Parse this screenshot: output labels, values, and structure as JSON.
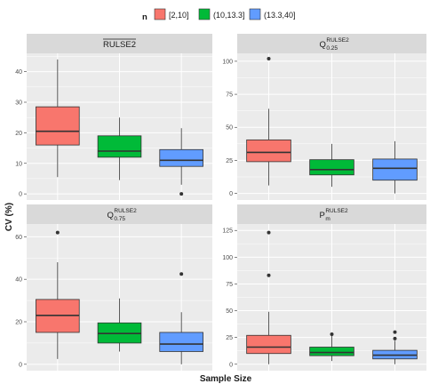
{
  "legend": {
    "title": "n",
    "items": [
      {
        "label": "[2,10]",
        "color": "#F8766D"
      },
      {
        "label": "(10,13.3]",
        "color": "#00BA38"
      },
      {
        "label": "(13.3,40]",
        "color": "#619CFF"
      }
    ]
  },
  "axes": {
    "xlabel": "Sample Size",
    "ylabel": "CV (%)"
  },
  "colors": {
    "panel_bg": "#EBEBEB",
    "strip_bg": "#D9D9D9",
    "grid": "#FFFFFF"
  },
  "chart_data": [
    {
      "type": "box",
      "strip": {
        "main": "RULSE2",
        "overline": true,
        "sub": "",
        "sup": ""
      },
      "ylim": [
        -2,
        46
      ],
      "yticks": [
        0,
        10,
        20,
        30,
        40
      ],
      "boxes": [
        {
          "group": "[2,10]",
          "whisker_low": 5.5,
          "q1": 16,
          "median": 20.5,
          "q3": 28.5,
          "whisker_high": 44,
          "outliers": []
        },
        {
          "group": "(10,13.3]",
          "whisker_low": 4.5,
          "q1": 12,
          "median": 14,
          "q3": 19,
          "whisker_high": 25,
          "outliers": []
        },
        {
          "group": "(13.3,40]",
          "whisker_low": 3,
          "q1": 9,
          "median": 11,
          "q3": 14.5,
          "whisker_high": 21.5,
          "outliers": [
            0
          ]
        }
      ]
    },
    {
      "type": "box",
      "strip": {
        "main": "Q",
        "overline": false,
        "sub": "0.25",
        "sup": "RULSE2"
      },
      "ylim": [
        -5,
        106
      ],
      "yticks": [
        0,
        25,
        50,
        75,
        100
      ],
      "boxes": [
        {
          "group": "[2,10]",
          "whisker_low": 6,
          "q1": 24,
          "median": 31,
          "q3": 40.5,
          "whisker_high": 64,
          "outliers": [
            102
          ]
        },
        {
          "group": "(10,13.3]",
          "whisker_low": 5,
          "q1": 14,
          "median": 18,
          "q3": 25.5,
          "whisker_high": 37.5,
          "outliers": []
        },
        {
          "group": "(13.3,40]",
          "whisker_low": 0,
          "q1": 10,
          "median": 19,
          "q3": 26,
          "whisker_high": 39.5,
          "outliers": []
        }
      ]
    },
    {
      "type": "box",
      "strip": {
        "main": "Q",
        "overline": false,
        "sub": "0.75",
        "sup": "RULSE2"
      },
      "ylim": [
        -3,
        66
      ],
      "yticks": [
        0,
        20,
        40,
        60
      ],
      "boxes": [
        {
          "group": "[2,10]",
          "whisker_low": 2.5,
          "q1": 15,
          "median": 23,
          "q3": 30.5,
          "whisker_high": 48,
          "outliers": [
            62
          ]
        },
        {
          "group": "(10,13.3]",
          "whisker_low": 6,
          "q1": 10,
          "median": 14.5,
          "q3": 19.5,
          "whisker_high": 31,
          "outliers": []
        },
        {
          "group": "(13.3,40]",
          "whisker_low": 0,
          "q1": 6,
          "median": 9.5,
          "q3": 15,
          "whisker_high": 24.5,
          "outliers": [
            42.5
          ]
        }
      ]
    },
    {
      "type": "box",
      "strip": {
        "main": "P",
        "overline": false,
        "sub": "m",
        "sup": "RULSE2"
      },
      "ylim": [
        -6,
        131
      ],
      "yticks": [
        0,
        25,
        50,
        75,
        100,
        125
      ],
      "boxes": [
        {
          "group": "[2,10]",
          "whisker_low": 0,
          "q1": 10,
          "median": 16,
          "q3": 27,
          "whisker_high": 49,
          "outliers": [
            83,
            123
          ]
        },
        {
          "group": "(10,13.3]",
          "whisker_low": 3,
          "q1": 8,
          "median": 11,
          "q3": 16,
          "whisker_high": 27,
          "outliers": [
            28
          ]
        },
        {
          "group": "(13.3,40]",
          "whisker_low": 0,
          "q1": 5,
          "median": 8.5,
          "q3": 13,
          "whisker_high": 22,
          "outliers": [
            24,
            30
          ]
        }
      ]
    }
  ]
}
